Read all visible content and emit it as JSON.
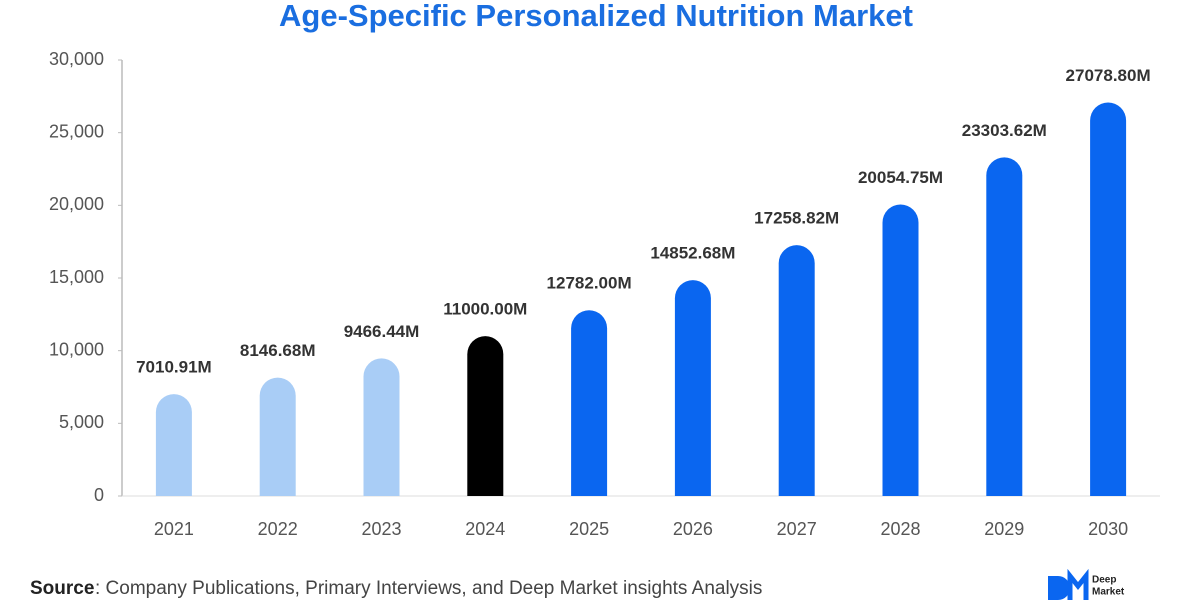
{
  "chart_data": {
    "type": "bar",
    "title": "Age-Specific Personalized Nutrition Market",
    "categories": [
      "2021",
      "2022",
      "2023",
      "2024",
      "2025",
      "2026",
      "2027",
      "2028",
      "2029",
      "2030"
    ],
    "values": [
      7010.91,
      8146.68,
      9466.44,
      11000.0,
      12782.0,
      14852.68,
      17258.82,
      20054.75,
      23303.62,
      27078.8
    ],
    "value_labels": [
      "7010.91M",
      "8146.68M",
      "9466.44M",
      "11000.00M",
      "12782.00M",
      "14852.68M",
      "17258.82M",
      "20054.75M",
      "23303.62M",
      "27078.80M"
    ],
    "colors": [
      "#a9cdf6",
      "#a9cdf6",
      "#a9cdf6",
      "#000000",
      "#0a66f0",
      "#0a66f0",
      "#0a66f0",
      "#0a66f0",
      "#0a66f0",
      "#0a66f0"
    ],
    "ylim": [
      0,
      30000
    ],
    "yticks": [
      0,
      {
        "value": 5000,
        "label": "5,000"
      },
      {
        "value": 10000,
        "label": "10,000"
      },
      {
        "value": 15000,
        "label": "15,000"
      },
      {
        "value": 20000,
        "label": "20,000"
      },
      {
        "value": 25000,
        "label": "25,000"
      },
      {
        "value": 30000,
        "label": "30,000"
      }
    ],
    "grid": false
  },
  "source": {
    "label": "Source",
    "text": ": Company Publications, Primary Interviews, and Deep Market insights Analysis"
  },
  "logo": {
    "lines": [
      "Deep",
      "Market"
    ]
  }
}
